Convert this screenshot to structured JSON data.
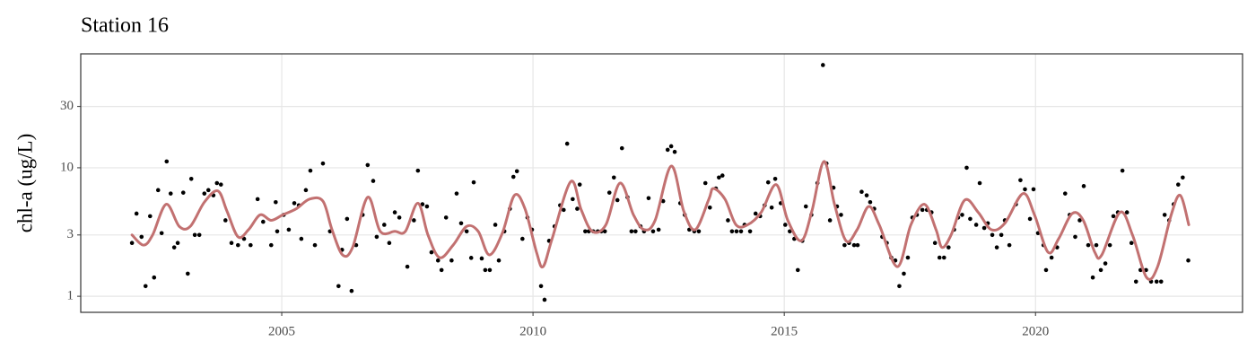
{
  "chart_data": {
    "type": "scatter",
    "title": "Station 16",
    "y_label": "chl-a (ug/L)",
    "log_y": true,
    "grid": true,
    "color": "#000000",
    "xlim": [
      2001.0,
      2024.12
    ],
    "xticks": [
      2005,
      2010,
      2015,
      2020
    ],
    "ylim": [
      0.75,
      77
    ],
    "yticks": [
      1,
      3,
      10,
      30
    ],
    "x": [
      2002.02,
      2002.11,
      2002.21,
      2002.29,
      2002.38,
      2002.46,
      2002.54,
      2002.61,
      2002.71,
      2002.79,
      2002.86,
      2002.93,
      2003.04,
      2003.13,
      2003.2,
      2003.27,
      2003.36,
      2003.46,
      2003.54,
      2003.64,
      2003.71,
      2003.79,
      2003.88,
      2004.0,
      2004.13,
      2004.25,
      2004.38,
      2004.52,
      2004.63,
      2004.79,
      2004.88,
      2004.91,
      2005.04,
      2005.14,
      2005.25,
      2005.34,
      2005.39,
      2005.48,
      2005.57,
      2005.66,
      2005.82,
      2005.96,
      2006.13,
      2006.2,
      2006.3,
      2006.39,
      2006.48,
      2006.61,
      2006.71,
      2006.82,
      2006.89,
      2007.04,
      2007.14,
      2007.25,
      2007.34,
      2007.5,
      2007.63,
      2007.71,
      2007.8,
      2007.89,
      2007.98,
      2008.11,
      2008.18,
      2008.27,
      2008.38,
      2008.48,
      2008.57,
      2008.68,
      2008.77,
      2008.82,
      2008.98,
      2009.05,
      2009.14,
      2009.25,
      2009.32,
      2009.43,
      2009.54,
      2009.61,
      2009.68,
      2009.79,
      2009.89,
      2009.98,
      2010.16,
      2010.23,
      2010.32,
      2010.43,
      2010.54,
      2010.61,
      2010.68,
      2010.79,
      2010.88,
      2010.93,
      2011.04,
      2011.11,
      2011.2,
      2011.29,
      2011.36,
      2011.43,
      2011.52,
      2011.61,
      2011.68,
      2011.77,
      2011.88,
      2011.96,
      2012.04,
      2012.14,
      2012.21,
      2012.3,
      2012.39,
      2012.5,
      2012.59,
      2012.68,
      2012.75,
      2012.82,
      2012.93,
      2013.02,
      2013.11,
      2013.21,
      2013.3,
      2013.43,
      2013.52,
      2013.64,
      2013.7,
      2013.77,
      2013.88,
      2013.96,
      2014.05,
      2014.14,
      2014.21,
      2014.32,
      2014.43,
      2014.52,
      2014.61,
      2014.68,
      2014.75,
      2014.82,
      2014.93,
      2015.02,
      2015.11,
      2015.2,
      2015.27,
      2015.36,
      2015.43,
      2015.54,
      2015.66,
      2015.77,
      2015.84,
      2015.91,
      2015.98,
      2016.05,
      2016.13,
      2016.2,
      2016.29,
      2016.39,
      2016.46,
      2016.54,
      2016.64,
      2016.71,
      2016.79,
      2016.95,
      2017.04,
      2017.13,
      2017.21,
      2017.29,
      2017.38,
      2017.46,
      2017.55,
      2017.64,
      2017.75,
      2017.84,
      2017.93,
      2018.0,
      2018.09,
      2018.18,
      2018.27,
      2018.38,
      2018.46,
      2018.54,
      2018.63,
      2018.7,
      2018.82,
      2018.89,
      2018.98,
      2019.05,
      2019.14,
      2019.23,
      2019.32,
      2019.39,
      2019.48,
      2019.61,
      2019.7,
      2019.79,
      2019.89,
      2019.96,
      2020.05,
      2020.16,
      2020.21,
      2020.32,
      2020.43,
      2020.59,
      2020.68,
      2020.79,
      2020.88,
      2020.96,
      2021.05,
      2021.14,
      2021.21,
      2021.3,
      2021.39,
      2021.48,
      2021.55,
      2021.64,
      2021.73,
      2021.82,
      2021.91,
      2022.0,
      2022.09,
      2022.2,
      2022.3,
      2022.41,
      2022.5,
      2022.57,
      2022.66,
      2022.75,
      2022.84,
      2022.93,
      2023.04
    ],
    "values": [
      2.6,
      4.4,
      2.9,
      1.2,
      4.2,
      1.4,
      6.7,
      3.1,
      11.2,
      6.3,
      2.4,
      2.6,
      6.4,
      1.5,
      8.2,
      3.0,
      3.0,
      6.3,
      6.7,
      6.1,
      7.6,
      7.4,
      3.9,
      2.6,
      2.5,
      2.8,
      2.5,
      5.7,
      3.8,
      2.5,
      5.4,
      3.2,
      4.3,
      3.3,
      5.3,
      5.1,
      2.8,
      6.7,
      9.5,
      2.5,
      10.8,
      3.2,
      1.2,
      2.3,
      4.0,
      1.1,
      2.5,
      4.3,
      10.5,
      7.9,
      2.9,
      3.6,
      2.6,
      4.5,
      4.1,
      1.7,
      3.9,
      9.5,
      5.2,
      5.0,
      2.2,
      1.9,
      1.6,
      4.1,
      1.9,
      6.3,
      3.7,
      3.2,
      1.99,
      7.7,
      1.97,
      1.6,
      1.6,
      3.6,
      1.9,
      3.2,
      4.8,
      8.5,
      9.4,
      2.8,
      4.1,
      3.3,
      1.2,
      0.94,
      2.7,
      3.5,
      5.1,
      4.7,
      15.4,
      5.7,
      4.8,
      7.4,
      3.2,
      3.2,
      3.2,
      3.2,
      3.2,
      3.2,
      6.4,
      8.4,
      5.6,
      14.2,
      5.9,
      3.2,
      3.2,
      3.5,
      3.2,
      5.8,
      3.2,
      3.3,
      5.5,
      13.8,
      14.7,
      13.3,
      5.3,
      4.3,
      3.3,
      3.2,
      3.2,
      7.6,
      4.9,
      6.9,
      8.4,
      8.7,
      3.9,
      3.2,
      3.2,
      3.2,
      3.6,
      3.2,
      4.4,
      4.2,
      5.1,
      7.7,
      4.9,
      8.2,
      5.3,
      3.6,
      3.2,
      2.8,
      1.6,
      2.7,
      5.0,
      4.3,
      7.6,
      63,
      10.8,
      3.9,
      7.0,
      5.0,
      4.3,
      2.5,
      2.6,
      2.5,
      2.5,
      6.5,
      6.1,
      5.4,
      4.8,
      2.9,
      2.6,
      2.0,
      1.9,
      1.2,
      1.5,
      2.0,
      4.1,
      4.3,
      4.7,
      4.7,
      4.5,
      2.6,
      2.0,
      2.0,
      2.4,
      3.3,
      4.1,
      4.3,
      10.0,
      4.0,
      3.6,
      7.6,
      3.4,
      3.7,
      3.0,
      2.4,
      3.0,
      3.9,
      2.5,
      5.2,
      8.0,
      6.8,
      4.0,
      6.8,
      3.1,
      2.5,
      1.6,
      2.0,
      2.4,
      6.3,
      4.3,
      2.9,
      3.9,
      7.2,
      2.5,
      1.4,
      2.5,
      1.6,
      1.8,
      2.5,
      4.2,
      4.5,
      9.5,
      4.5,
      2.6,
      1.3,
      1.6,
      1.6,
      1.3,
      1.3,
      1.3,
      4.3,
      3.9,
      5.2,
      7.4,
      8.4,
      1.9
    ],
    "smooth": {
      "color": "#c27171",
      "x": [
        2002.02,
        2002.25,
        2002.43,
        2002.7,
        2002.96,
        2003.18,
        2003.46,
        2003.73,
        2003.91,
        2004.13,
        2004.34,
        2004.57,
        2004.79,
        2005.02,
        2005.29,
        2005.55,
        2005.82,
        2006.0,
        2006.21,
        2006.41,
        2006.71,
        2006.96,
        2007.25,
        2007.46,
        2007.71,
        2007.91,
        2008.14,
        2008.41,
        2008.68,
        2008.91,
        2009.13,
        2009.39,
        2009.63,
        2009.84,
        2010.07,
        2010.2,
        2010.38,
        2010.75,
        2010.96,
        2011.18,
        2011.45,
        2011.73,
        2012.0,
        2012.21,
        2012.43,
        2012.75,
        2013.0,
        2013.23,
        2013.5,
        2013.59,
        2013.82,
        2014.04,
        2014.27,
        2014.54,
        2014.84,
        2015.07,
        2015.34,
        2015.55,
        2015.79,
        2016.0,
        2016.23,
        2016.45,
        2016.68,
        2016.89,
        2017.25,
        2017.52,
        2017.79,
        2018.02,
        2018.14,
        2018.32,
        2018.59,
        2018.86,
        2019.12,
        2019.39,
        2019.75,
        2019.98,
        2020.25,
        2020.46,
        2020.73,
        2020.95,
        2021.18,
        2021.32,
        2021.68,
        2021.93,
        2022.21,
        2022.43,
        2022.7,
        2022.88,
        2023.05
      ],
      "values": [
        3.0,
        2.5,
        3.0,
        5.2,
        3.5,
        3.5,
        5.4,
        6.6,
        4.6,
        2.9,
        3.3,
        4.3,
        3.9,
        4.3,
        4.8,
        5.7,
        5.5,
        3.3,
        2.1,
        2.4,
        5.9,
        3.2,
        3.2,
        3.2,
        5.3,
        3.0,
        2.0,
        2.5,
        3.5,
        3.2,
        2.1,
        3.1,
        6.1,
        4.8,
        2.2,
        1.7,
        2.8,
        7.8,
        4.7,
        3.2,
        3.6,
        7.6,
        4.3,
        3.3,
        3.9,
        10.3,
        4.6,
        3.3,
        5.7,
        6.9,
        5.7,
        3.6,
        3.6,
        4.5,
        7.4,
        3.9,
        2.7,
        4.6,
        11.2,
        5.2,
        2.7,
        3.3,
        5.0,
        3.6,
        1.7,
        3.6,
        5.2,
        3.3,
        2.4,
        3.0,
        5.6,
        4.5,
        3.3,
        3.7,
        6.3,
        4.3,
        2.2,
        2.8,
        4.4,
        3.9,
        2.2,
        2.1,
        4.5,
        3.0,
        1.4,
        1.7,
        4.3,
        6.1,
        3.6
      ]
    }
  }
}
